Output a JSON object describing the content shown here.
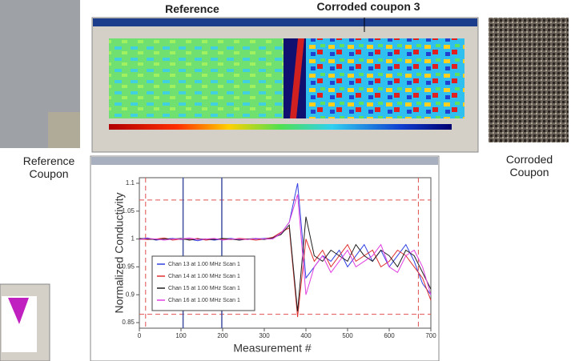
{
  "labels": {
    "reference": "Reference",
    "corroded": "Corroded coupon 3",
    "reference_coupon": "Reference Coupon",
    "corroded_coupon": "Corroded Coupon"
  },
  "chart_data": {
    "type": "line",
    "xlabel": "Measurement #",
    "ylabel": "Normalized Conductivity",
    "x": [
      0,
      20,
      40,
      60,
      80,
      100,
      120,
      140,
      160,
      180,
      200,
      220,
      240,
      260,
      280,
      300,
      320,
      340,
      360,
      380,
      400,
      420,
      440,
      460,
      480,
      500,
      520,
      540,
      560,
      580,
      600,
      620,
      640,
      660,
      680,
      700
    ],
    "series": [
      {
        "name": "Chan 13 at 1.00 MHz Scan 1",
        "color": "#3040e0",
        "values": [
          1.0,
          1.002,
          0.998,
          1.0,
          1.001,
          0.999,
          1.0,
          0.997,
          1.0,
          0.998,
          1.0,
          1.001,
          0.999,
          1.0,
          1.0,
          1.001,
          1.002,
          1.01,
          1.03,
          1.1,
          0.93,
          0.95,
          0.97,
          0.96,
          0.98,
          0.95,
          0.97,
          0.99,
          0.96,
          0.98,
          0.95,
          0.97,
          0.99,
          0.96,
          0.92,
          0.9
        ]
      },
      {
        "name": "Chan 14 at 1.00 MHz Scan 1",
        "color": "#e03030",
        "values": [
          1.0,
          0.999,
          1.0,
          1.002,
          0.998,
          1.0,
          0.999,
          1.001,
          0.998,
          1.0,
          1.0,
          0.999,
          1.001,
          1.0,
          0.998,
          1.0,
          1.003,
          1.012,
          1.02,
          0.86,
          1.0,
          0.96,
          0.98,
          0.95,
          0.97,
          0.99,
          0.96,
          0.97,
          0.98,
          0.95,
          0.96,
          0.98,
          0.97,
          0.95,
          0.93,
          0.89
        ]
      },
      {
        "name": "Chan 15 at 1.00 MHz Scan 1",
        "color": "#202020",
        "values": [
          1.001,
          1.0,
          0.999,
          1.0,
          1.0,
          1.001,
          0.998,
          1.0,
          1.0,
          0.999,
          1.001,
          1.0,
          0.998,
          1.0,
          1.001,
          0.999,
          1.002,
          1.008,
          1.025,
          0.87,
          1.04,
          0.97,
          0.96,
          0.98,
          0.97,
          0.96,
          0.99,
          0.97,
          0.96,
          0.98,
          0.97,
          0.95,
          0.98,
          0.97,
          0.94,
          0.91
        ]
      },
      {
        "name": "Chan 16 at 1.00 MHz Scan 1",
        "color": "#e040e0",
        "values": [
          0.999,
          1.001,
          1.0,
          0.998,
          1.0,
          1.0,
          1.002,
          0.999,
          1.0,
          1.001,
          0.998,
          1.0,
          1.0,
          0.999,
          1.001,
          1.0,
          1.0,
          1.01,
          1.03,
          1.08,
          0.9,
          0.95,
          0.97,
          0.94,
          0.96,
          0.98,
          0.95,
          0.96,
          0.97,
          0.99,
          0.95,
          0.94,
          0.97,
          0.98,
          0.95,
          0.9
        ]
      }
    ],
    "xlim": [
      0,
      700
    ],
    "xticks": [
      0,
      100,
      200,
      300,
      400,
      500,
      600,
      700
    ],
    "ylim": [
      0.84,
      1.11
    ],
    "yticks": [
      0.85,
      0.9,
      0.95,
      1,
      1.05,
      1.1
    ],
    "markers": {
      "color": "#4050a0",
      "x": [
        105,
        198
      ]
    },
    "limits": {
      "color": "#e05050",
      "x": [
        15,
        670
      ],
      "y": [
        1.07,
        0.865
      ]
    }
  }
}
